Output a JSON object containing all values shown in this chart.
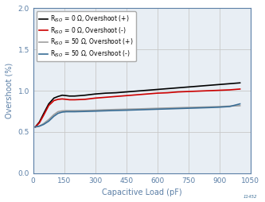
{
  "title": "",
  "xlabel": "Capacitive Load (pF)",
  "ylabel": "Overshoot (%)",
  "xlim": [
    0,
    1050
  ],
  "ylim": [
    0,
    2
  ],
  "xticks": [
    0,
    150,
    300,
    450,
    600,
    750,
    900,
    1050
  ],
  "yticks": [
    0,
    0.5,
    1.0,
    1.5,
    2.0
  ],
  "grid_color": "#c8c8c8",
  "background_color": "#ffffff",
  "plot_bg_color": "#e8eef4",
  "tick_color": "#5b7fa6",
  "label_color": "#5b7fa6",
  "spine_color": "#5b7fa6",
  "series": [
    {
      "label": "R$_{ISO}$ = 0 Ω, Overshoot (+)",
      "color": "#000000",
      "linewidth": 1.2,
      "x": [
        10,
        30,
        50,
        75,
        100,
        120,
        140,
        160,
        175,
        200,
        250,
        300,
        350,
        400,
        450,
        500,
        550,
        600,
        650,
        700,
        750,
        800,
        850,
        900,
        950,
        1000
      ],
      "y": [
        0.56,
        0.62,
        0.72,
        0.84,
        0.91,
        0.93,
        0.945,
        0.94,
        0.935,
        0.935,
        0.945,
        0.96,
        0.97,
        0.975,
        0.985,
        0.995,
        1.005,
        1.015,
        1.025,
        1.035,
        1.045,
        1.055,
        1.065,
        1.075,
        1.085,
        1.095
      ]
    },
    {
      "label": "R$_{ISO}$ = 0 Ω, Overshoot (-)",
      "color": "#cc0000",
      "linewidth": 1.2,
      "x": [
        10,
        30,
        50,
        75,
        100,
        120,
        140,
        160,
        175,
        200,
        250,
        300,
        350,
        400,
        450,
        500,
        550,
        600,
        650,
        700,
        750,
        800,
        850,
        900,
        950,
        1000
      ],
      "y": [
        0.56,
        0.61,
        0.7,
        0.82,
        0.88,
        0.895,
        0.9,
        0.895,
        0.89,
        0.89,
        0.895,
        0.91,
        0.92,
        0.93,
        0.94,
        0.95,
        0.96,
        0.97,
        0.975,
        0.985,
        0.99,
        0.995,
        1.0,
        1.005,
        1.01,
        1.02
      ]
    },
    {
      "label": "R$_{ISO}$ = 50 Ω, Overshoot (+)",
      "color": "#9e9e9e",
      "linewidth": 1.2,
      "x": [
        10,
        30,
        50,
        75,
        100,
        120,
        140,
        160,
        175,
        200,
        250,
        300,
        350,
        400,
        450,
        500,
        550,
        600,
        650,
        700,
        750,
        800,
        850,
        900,
        950,
        1000
      ],
      "y": [
        0.56,
        0.57,
        0.6,
        0.65,
        0.71,
        0.745,
        0.755,
        0.758,
        0.758,
        0.758,
        0.76,
        0.763,
        0.768,
        0.772,
        0.775,
        0.778,
        0.782,
        0.786,
        0.79,
        0.793,
        0.797,
        0.8,
        0.803,
        0.807,
        0.813,
        0.818
      ]
    },
    {
      "label": "R$_{ISO}$ = 50 Ω, Overshoot (-)",
      "color": "#3a6e96",
      "linewidth": 1.2,
      "x": [
        10,
        30,
        50,
        75,
        100,
        120,
        140,
        160,
        175,
        200,
        250,
        300,
        350,
        400,
        450,
        500,
        550,
        600,
        650,
        700,
        750,
        800,
        850,
        900,
        950,
        1000
      ],
      "y": [
        0.56,
        0.57,
        0.59,
        0.63,
        0.69,
        0.725,
        0.74,
        0.745,
        0.745,
        0.745,
        0.748,
        0.752,
        0.756,
        0.76,
        0.763,
        0.767,
        0.771,
        0.775,
        0.779,
        0.783,
        0.787,
        0.791,
        0.795,
        0.8,
        0.808,
        0.84
      ]
    }
  ],
  "legend_loc": "upper left",
  "legend_fontsize": 5.5,
  "axis_fontsize": 7,
  "tick_fontsize": 6.5,
  "watermark": "11452"
}
